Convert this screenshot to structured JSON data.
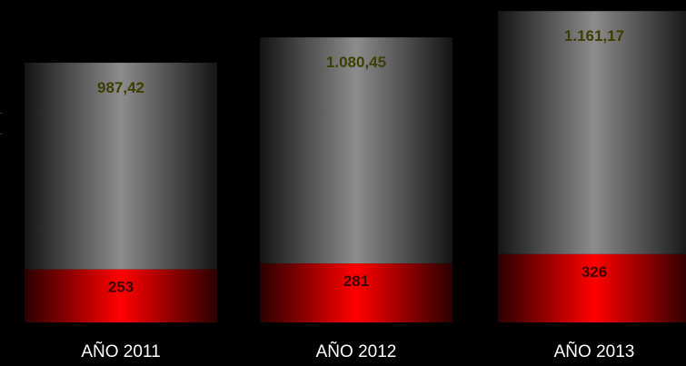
{
  "chart_data": {
    "type": "bar",
    "stacked": true,
    "categories": [
      "AÑO 2011",
      "AÑO 2012",
      "AÑO 2013"
    ],
    "series": [
      {
        "values": [
          253,
          281,
          326
        ],
        "labels": [
          "253",
          "281",
          "326"
        ],
        "color": "#ff0000"
      },
      {
        "values": [
          987.42,
          1080.45,
          1161.17
        ],
        "labels": [
          "987,42",
          "1.080,45",
          "1.161,17"
        ],
        "color": "#808080"
      }
    ],
    "ylim": [
      0,
      1500
    ],
    "grid": false,
    "legend": "none",
    "colors": {
      "background": "#000000",
      "top_label": "#3d3d00",
      "bottom_label": "#3d0000",
      "category_label": "#ffffff"
    }
  }
}
